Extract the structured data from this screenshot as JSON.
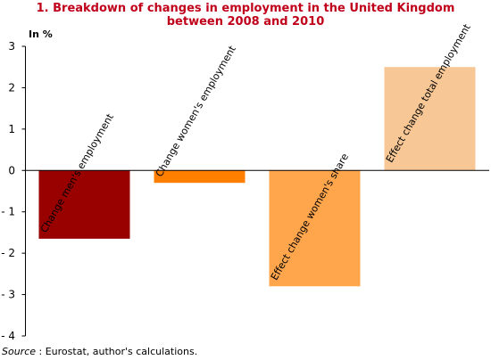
{
  "title_line1": "1. Breakdown of changes in employment in the United Kingdom",
  "title_line2": "between 2008 and 2010",
  "y_unit": "In %",
  "source_prefix": "Source",
  "source_text": " : Eurostat, author's calculations.",
  "chart_data": {
    "type": "bar",
    "categories": [
      "Change men's employment",
      "Change women's employment",
      "Effect change women's share",
      "Effect change total employment"
    ],
    "values": [
      -1.65,
      -0.3,
      -2.8,
      2.5
    ],
    "bar_colors": [
      "#990000",
      "#ff8000",
      "#ffa64d",
      "#f7c896"
    ],
    "ylim": [
      -4,
      3
    ],
    "yticks": [
      3,
      2,
      1,
      0,
      -1,
      -2,
      -3,
      -4
    ],
    "ytick_labels": [
      "3",
      "2",
      "1",
      "0",
      "- 1",
      "- 2",
      "- 3",
      "- 4"
    ],
    "grid": false
  }
}
